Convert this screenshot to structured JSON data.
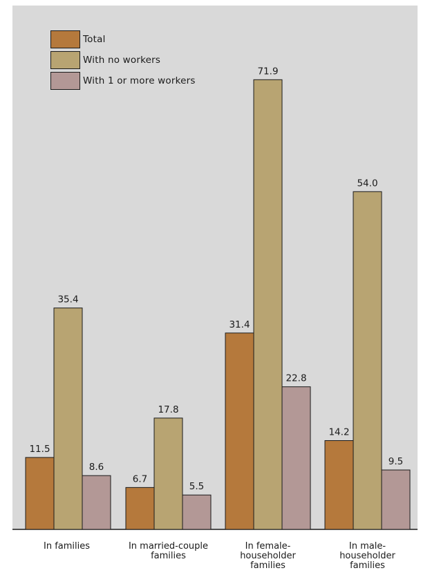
{
  "colors": {
    "background": "#d9d9d9",
    "axis": "#1a1a1a",
    "series": [
      "#b5793c",
      "#b8a472",
      "#b39896"
    ]
  },
  "chart_data": {
    "type": "bar",
    "categories": [
      [
        "In families"
      ],
      [
        "In married-couple",
        "families"
      ],
      [
        "In female-",
        "householder",
        "families"
      ],
      [
        "In male-",
        "householder",
        "families"
      ]
    ],
    "series": [
      {
        "name": "Total",
        "values": [
          11.5,
          6.7,
          31.4,
          14.2
        ]
      },
      {
        "name": "With no workers",
        "values": [
          35.4,
          17.8,
          71.9,
          54.0
        ]
      },
      {
        "name": "With 1 or more workers",
        "values": [
          8.6,
          5.5,
          22.8,
          9.5
        ]
      }
    ],
    "ylim": [
      0,
      80
    ],
    "grid": false,
    "legend_position": "top-left",
    "value_labels": true
  }
}
